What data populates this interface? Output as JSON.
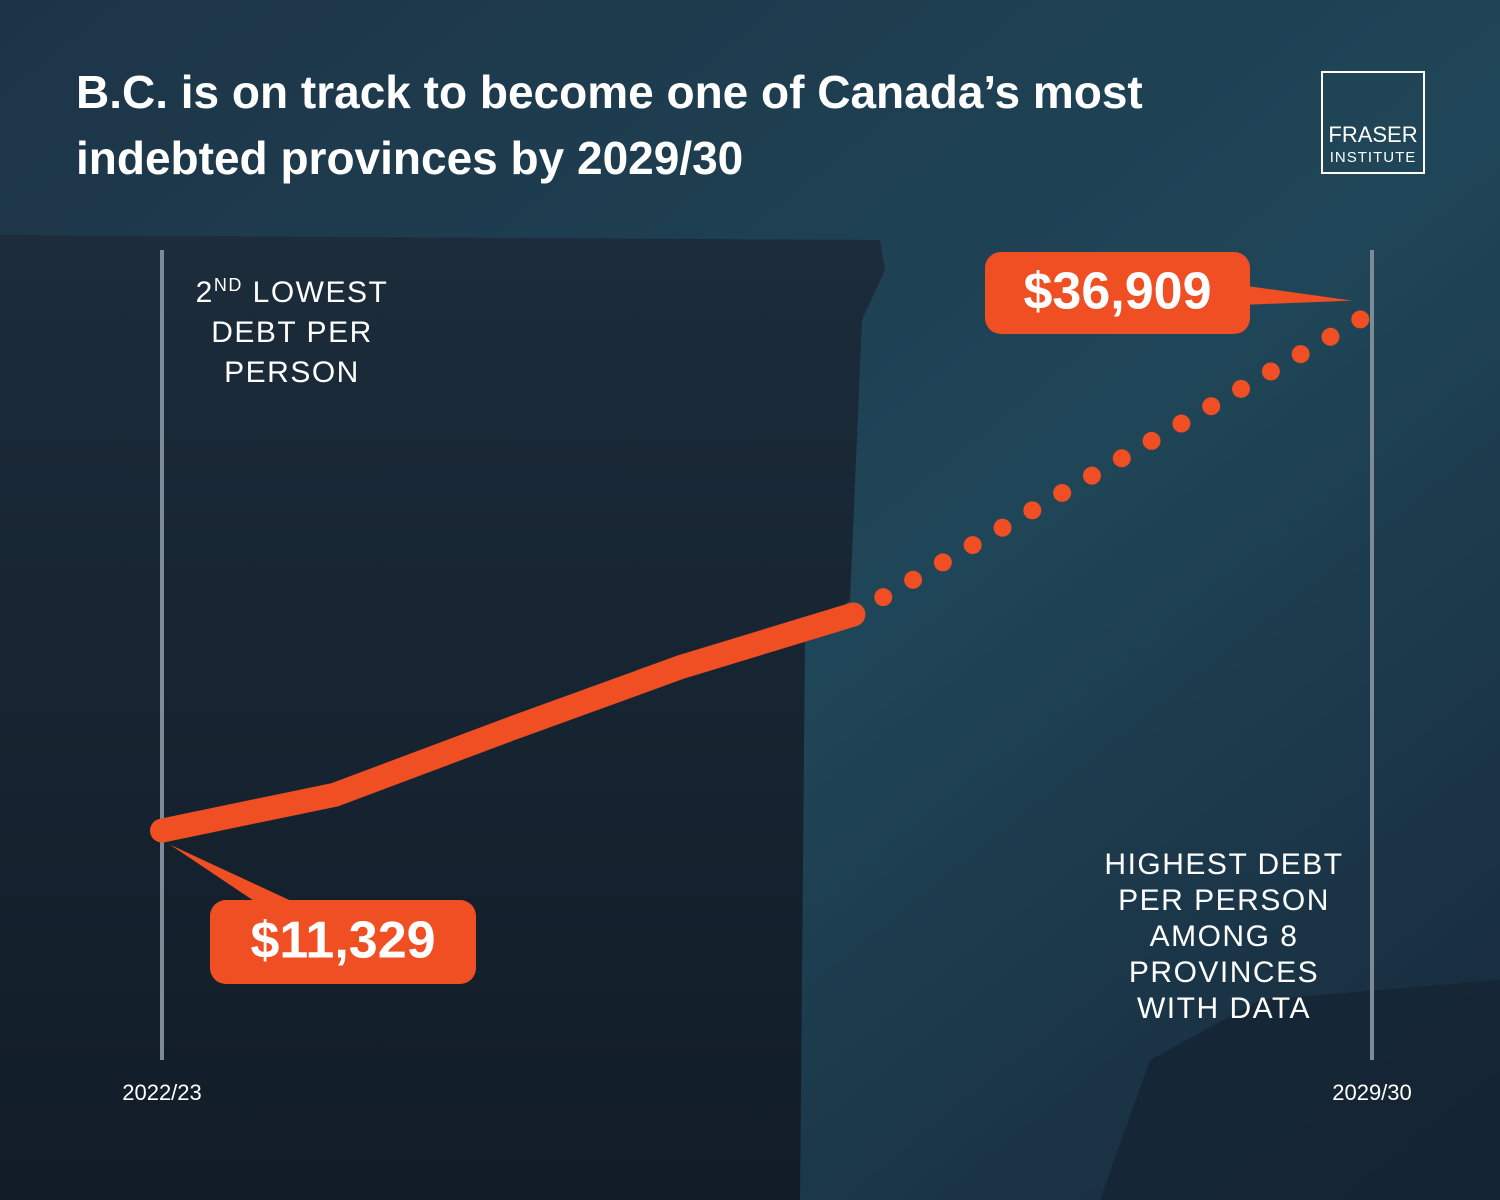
{
  "chart_data": {
    "type": "line",
    "title_lines": [
      "B.C. is on track to become one of Canada’s most",
      "indebted provinces by 2029/30"
    ],
    "categories": [
      "2022/23",
      null,
      null,
      null,
      null,
      null,
      null,
      "2029/30"
    ],
    "values": [
      11329,
      13100,
      16300,
      19400,
      22000,
      26970,
      31940,
      36909
    ],
    "value_labels": [
      "$11,329",
      null,
      null,
      null,
      null,
      null,
      null,
      "$36,909"
    ],
    "color": "#f04e23",
    "solid_until_index": 4,
    "ylim": [
      0,
      40000
    ],
    "annotations": [
      {
        "ordinal": "2",
        "ordinal_suffix": "ND",
        "lines": [
          " LOWEST",
          "DEBT PER",
          "PERSON"
        ]
      },
      {
        "lines": [
          "HIGHEST DEBT",
          "PER PERSON",
          "AMONG 8",
          "PROVINCES",
          "WITH DATA"
        ]
      }
    ]
  },
  "branding": {
    "logo_lines": [
      "FRASER",
      "INSTITUTE"
    ]
  }
}
